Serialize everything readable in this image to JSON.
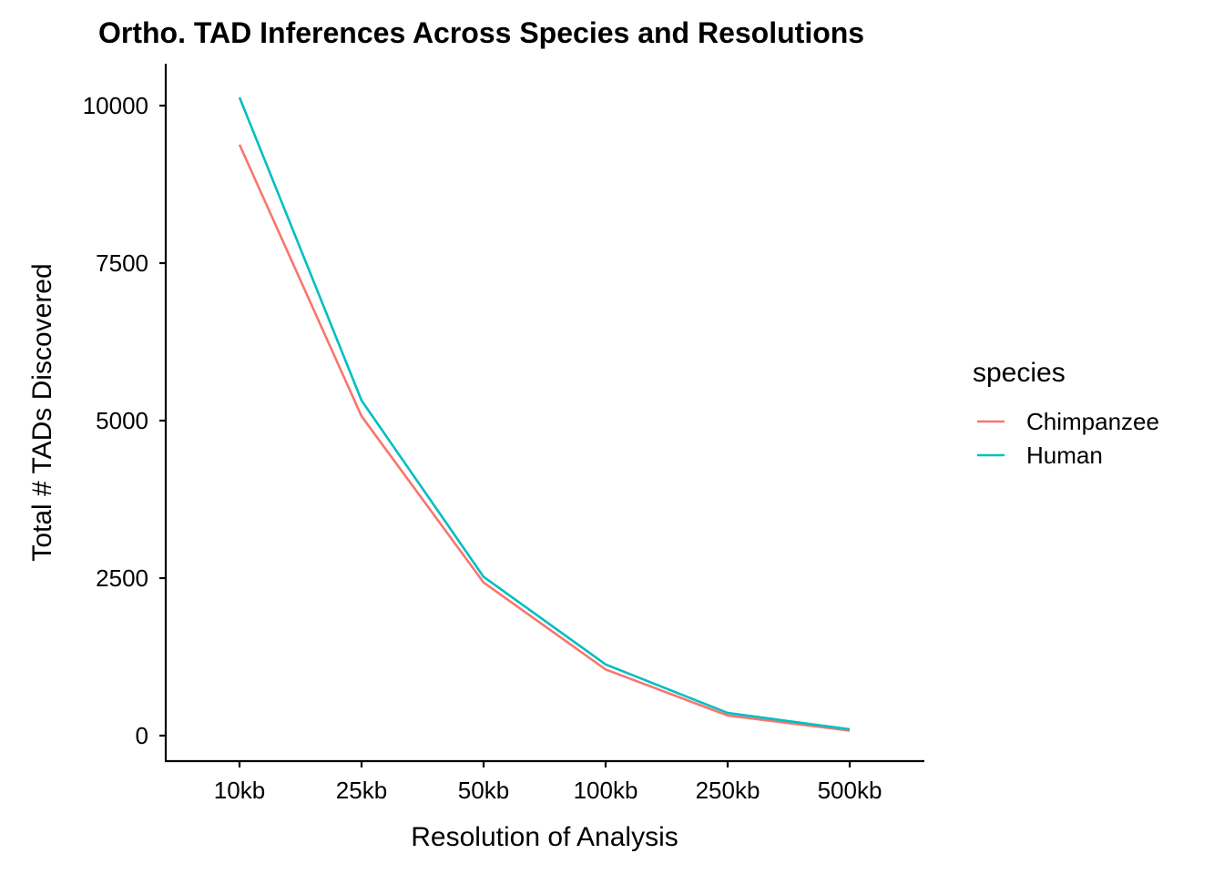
{
  "chart_data": {
    "type": "line",
    "title": "Ortho. TAD Inferences Across Species and Resolutions",
    "xlabel": "Resolution of Analysis",
    "ylabel": "Total # TADs Discovered",
    "categories": [
      "10kb",
      "25kb",
      "50kb",
      "100kb",
      "250kb",
      "500kb"
    ],
    "yticks": [
      0,
      2500,
      5000,
      7500,
      10000
    ],
    "ylim": [
      -400,
      10650
    ],
    "grid": false,
    "legend": {
      "title": "species",
      "position": "right"
    },
    "series": [
      {
        "name": "Chimpanzee",
        "color": "#F8766D",
        "values": [
          9380,
          5070,
          2430,
          1050,
          320,
          80
        ]
      },
      {
        "name": "Human",
        "color": "#00BFC4",
        "values": [
          10130,
          5320,
          2520,
          1130,
          360,
          100
        ]
      }
    ]
  }
}
